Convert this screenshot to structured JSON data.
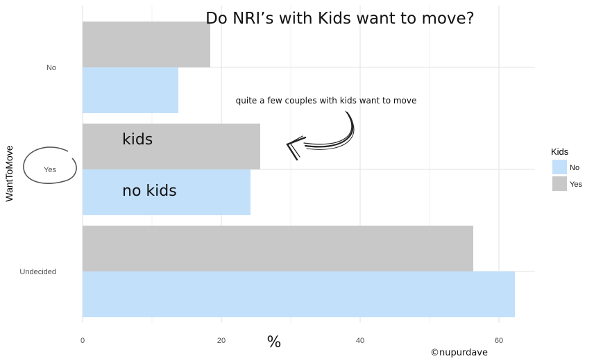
{
  "chart_data": {
    "type": "bar",
    "orientation": "horizontal",
    "title": "Do NRI’s with Kids want to move?",
    "xlabel": "%",
    "ylabel": "WantToMove",
    "categories": [
      "No",
      "Yes",
      "Undecided"
    ],
    "x_ticks": [
      "0",
      "20",
      "40",
      "60"
    ],
    "xlim": [
      0,
      65
    ],
    "grid": true,
    "legend": {
      "title": "Kids",
      "placement": "right",
      "entries": [
        {
          "label": "No",
          "color": "#c3e0fa"
        },
        {
          "label": "Yes",
          "color": "#c8c8c8"
        }
      ]
    },
    "series": [
      {
        "name": "Yes",
        "color": "#c8c8c8",
        "values": [
          18.4,
          25.6,
          56.3
        ]
      },
      {
        "name": "No",
        "color": "#c3e0fa",
        "values": [
          13.8,
          24.2,
          62.3
        ]
      }
    ],
    "annotations": {
      "note": "quite a few couples with kids want to move",
      "kids_label": "kids",
      "no_kids_label": "no kids",
      "credit": "©nupurdave"
    }
  }
}
